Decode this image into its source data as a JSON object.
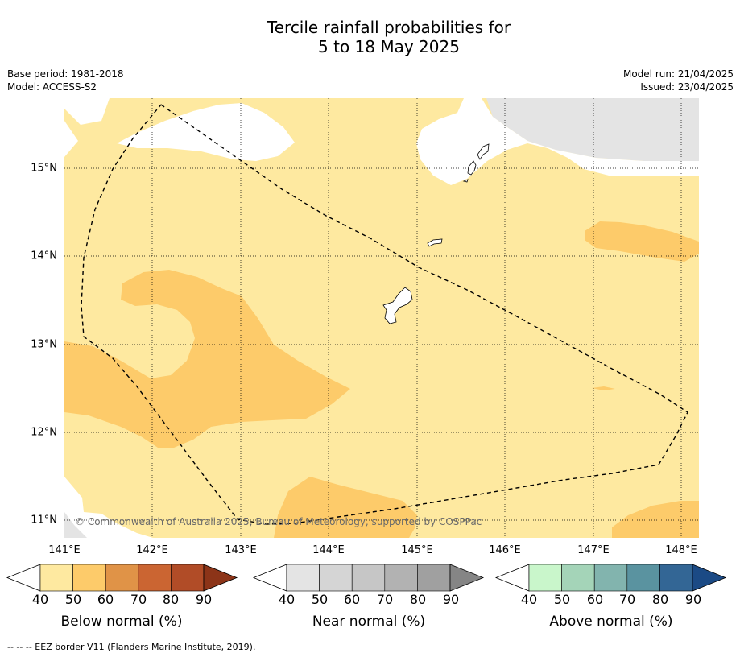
{
  "title_line1": "Tercile rainfall probabilities for",
  "title_line2": "5 to 18 May 2025",
  "meta": {
    "base_period": "Base period: 1981-2018",
    "model": "Model: ACCESS-S2",
    "model_run": "Model run: 21/04/2025",
    "issued": "Issued: 23/04/2025"
  },
  "map": {
    "x_ticks": [
      "141°E",
      "142°E",
      "143°E",
      "144°E",
      "145°E",
      "146°E",
      "147°E",
      "148°E"
    ],
    "y_ticks": [
      "15°N",
      "14°N",
      "13°N",
      "12°N",
      "11°N"
    ],
    "copyright": "© Commonwealth of Australia 2025, Bureau of Meteorology, supported by COSPPac",
    "colors": {
      "below_40_50": "#fee9a0",
      "below_50_60": "#fdcb6a",
      "near_40_50": "#e4e4e4",
      "land": "#ffffff"
    }
  },
  "colorbars": [
    {
      "label": "Below normal (%)",
      "ticks": [
        "40",
        "50",
        "60",
        "70",
        "80",
        "90"
      ],
      "colors": [
        "#fee9a0",
        "#fdcb6a",
        "#e09347",
        "#cb6532",
        "#b14c27",
        "#8c3418"
      ]
    },
    {
      "label": "Near normal (%)",
      "ticks": [
        "40",
        "50",
        "60",
        "70",
        "80",
        "90"
      ],
      "colors": [
        "#e4e4e4",
        "#d5d5d5",
        "#c6c6c6",
        "#b2b2b2",
        "#a0a0a0",
        "#858585"
      ]
    },
    {
      "label": "Above normal (%)",
      "ticks": [
        "40",
        "50",
        "60",
        "70",
        "80",
        "90"
      ],
      "colors": [
        "#c9f6cb",
        "#a4d4b8",
        "#82b4ae",
        "#5a93a0",
        "#336695",
        "#1b4a85"
      ]
    }
  ],
  "footnote": "--  --  -- EEZ border V11 (Flanders Marine Institute, 2019)."
}
